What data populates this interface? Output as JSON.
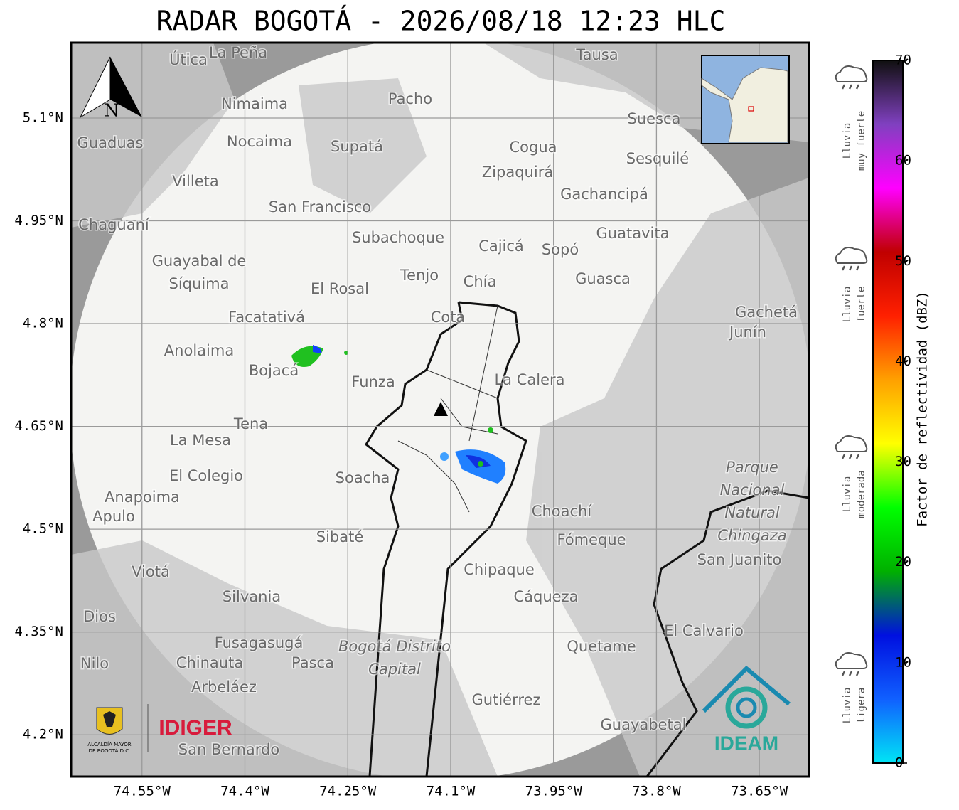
{
  "title": "RADAR BOGOTÁ - 2026/08/18 12:23 HLC",
  "axes": {
    "xlim": [
      -74.6534,
      -73.5776
    ],
    "ylim": [
      4.139,
      5.21
    ],
    "x_ticks": [
      {
        "value": -74.55,
        "label": "74.55°W"
      },
      {
        "value": -74.4,
        "label": "74.4°W"
      },
      {
        "value": -74.25,
        "label": "74.25°W"
      },
      {
        "value": -74.1,
        "label": "74.1°W"
      },
      {
        "value": -73.95,
        "label": "73.95°W"
      },
      {
        "value": -73.8,
        "label": "73.8°W"
      },
      {
        "value": -73.65,
        "label": "73.65°W"
      }
    ],
    "y_ticks": [
      {
        "value": 5.1,
        "label": "5.1°N"
      },
      {
        "value": 4.95,
        "label": "4.95°N"
      },
      {
        "value": 4.8,
        "label": "4.8°N"
      },
      {
        "value": 4.65,
        "label": "4.65°N"
      },
      {
        "value": 4.5,
        "label": "4.5°N"
      },
      {
        "value": 4.35,
        "label": "4.35°N"
      },
      {
        "value": 4.2,
        "label": "4.2°N"
      }
    ],
    "grid": true
  },
  "north_arrow": "N",
  "colorbar": {
    "label": "Factor de reflectividad (dBZ)",
    "lim": [
      0,
      70
    ],
    "ticks": [
      0,
      10,
      20,
      30,
      40,
      50,
      60,
      70
    ],
    "colormap": [
      "#00e5f5",
      "#1060ff",
      "#0010e0",
      "#00b000",
      "#00ff00",
      "#ffff00",
      "#ffa000",
      "#ff2000",
      "#c00000",
      "#ff00ff",
      "#8040c0",
      "#101010"
    ]
  },
  "intensity_legend": [
    {
      "lines": [
        "Lluvia",
        "muy fuerte"
      ]
    },
    {
      "lines": [
        "Lluvia",
        "fuerte"
      ]
    },
    {
      "lines": [
        "Lluvia",
        "moderada"
      ]
    },
    {
      "lines": [
        "Lluvia",
        "ligera"
      ]
    }
  ],
  "logos": {
    "alcaldia": [
      "ALCALDÍA MAYOR",
      "DE BOGOTÁ D.C."
    ],
    "idiger": "IDIGER",
    "ideam": "IDEAM"
  },
  "places": [
    {
      "lines": [
        "La Peña"
      ]
    },
    {
      "lines": [
        "Útica"
      ]
    },
    {
      "lines": [
        "Tausa"
      ]
    },
    {
      "lines": [
        "Pacho"
      ]
    },
    {
      "lines": [
        "Nimaima"
      ]
    },
    {
      "lines": [
        "Nocaima"
      ]
    },
    {
      "lines": [
        "Supatá"
      ]
    },
    {
      "lines": [
        "Guaduas"
      ]
    },
    {
      "lines": [
        "Suesca"
      ]
    },
    {
      "lines": [
        "Cogua"
      ]
    },
    {
      "lines": [
        "Sesquilé"
      ]
    },
    {
      "lines": [
        "Zipaquirá"
      ]
    },
    {
      "lines": [
        "Villeta"
      ]
    },
    {
      "lines": [
        "Gachancipá"
      ]
    },
    {
      "lines": [
        "San Francisco"
      ]
    },
    {
      "lines": [
        "Chaguaní"
      ]
    },
    {
      "lines": [
        "Guatavita"
      ]
    },
    {
      "lines": [
        "Subachoque"
      ]
    },
    {
      "lines": [
        "Cajicá"
      ]
    },
    {
      "lines": [
        "Sopó"
      ]
    },
    {
      "lines": [
        "Guayabal de",
        "Síquima"
      ]
    },
    {
      "lines": [
        "Tenjo"
      ]
    },
    {
      "lines": [
        "Chía"
      ]
    },
    {
      "lines": [
        "Guasca"
      ]
    },
    {
      "lines": [
        "El Rosal"
      ]
    },
    {
      "lines": [
        "Facatativá"
      ]
    },
    {
      "lines": [
        "Cota"
      ]
    },
    {
      "lines": [
        "Gachetá"
      ]
    },
    {
      "lines": [
        "Junín"
      ]
    },
    {
      "lines": [
        "Anolaima"
      ]
    },
    {
      "lines": [
        "Bojacá"
      ]
    },
    {
      "lines": [
        "Funza"
      ]
    },
    {
      "lines": [
        "La Calera"
      ]
    },
    {
      "lines": [
        "Tena"
      ]
    },
    {
      "lines": [
        "La Mesa"
      ]
    },
    {
      "lines": [
        "Parque",
        "Nacional",
        "Natural",
        "Chingaza"
      ]
    },
    {
      "lines": [
        "El Colegio"
      ]
    },
    {
      "lines": [
        "Soacha"
      ]
    },
    {
      "lines": [
        "Anapoima"
      ]
    },
    {
      "lines": [
        "Apulo"
      ]
    },
    {
      "lines": [
        "Choachí"
      ]
    },
    {
      "lines": [
        "Sibaté"
      ]
    },
    {
      "lines": [
        "Fómeque"
      ]
    },
    {
      "lines": [
        "San Juanito"
      ]
    },
    {
      "lines": [
        "Viotá"
      ]
    },
    {
      "lines": [
        "Chipaque"
      ]
    },
    {
      "lines": [
        "Silvania"
      ]
    },
    {
      "lines": [
        "Cáqueza"
      ]
    },
    {
      "lines": [
        "Dios"
      ]
    },
    {
      "lines": [
        "El Calvario"
      ]
    },
    {
      "lines": [
        "Fusagasugá"
      ]
    },
    {
      "lines": [
        "Bogotá Distrito",
        "Capital"
      ]
    },
    {
      "lines": [
        "Quetame"
      ]
    },
    {
      "lines": [
        "Nilo"
      ]
    },
    {
      "lines": [
        "Chinauta"
      ]
    },
    {
      "lines": [
        "Pasca"
      ]
    },
    {
      "lines": [
        "Arbeláez"
      ]
    },
    {
      "lines": [
        "Gutiérrez"
      ]
    },
    {
      "lines": [
        "Guayabetal"
      ]
    },
    {
      "lines": [
        "San Bernardo"
      ]
    }
  ]
}
